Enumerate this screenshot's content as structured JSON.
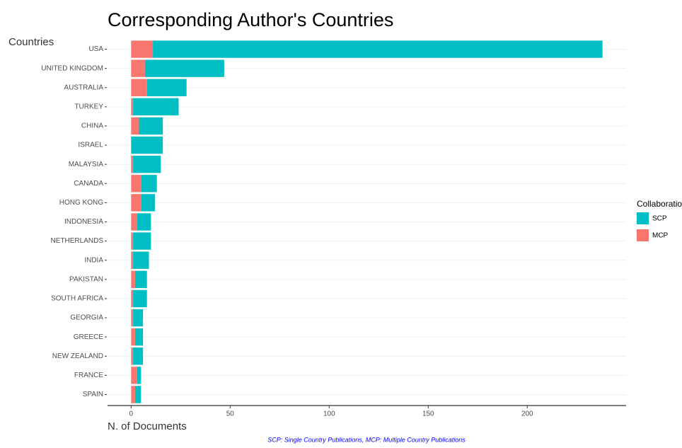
{
  "chart_data": {
    "type": "stacked_barh",
    "title": "Corresponding Author's Countries",
    "y_label": "Countries",
    "x_label": "N. of Documents",
    "legend_title": "Collaboration",
    "caption": "SCP: Single Country Publications, MCP: Multiple Country Publications",
    "categories": [
      "USA",
      "UNITED KINGDOM",
      "AUSTRALIA",
      "TURKEY",
      "CHINA",
      "ISRAEL",
      "MALAYSIA",
      "CANADA",
      "HONG KONG",
      "INDONESIA",
      "NETHERLANDS",
      "INDIA",
      "PAKISTAN",
      "SOUTH AFRICA",
      "GEORGIA",
      "GREECE",
      "NEW ZEALAND",
      "FRANCE",
      "SPAIN"
    ],
    "series": [
      {
        "name": "SCP",
        "color": "#00BFC4",
        "values": [
          227,
          40,
          20,
          23,
          12,
          16,
          14,
          8,
          7,
          7,
          9,
          8,
          6,
          7,
          5,
          4,
          5,
          2,
          3
        ]
      },
      {
        "name": "MCP",
        "color": "#F8766D",
        "values": [
          11,
          7,
          8,
          1,
          4,
          0,
          1,
          5,
          5,
          3,
          1,
          1,
          2,
          1,
          1,
          2,
          1,
          3,
          2
        ]
      }
    ],
    "xlim": [
      -11.9,
      249.9
    ],
    "xticks": [
      0,
      50,
      100,
      150,
      200
    ],
    "grid": true,
    "legend_position": "right"
  }
}
